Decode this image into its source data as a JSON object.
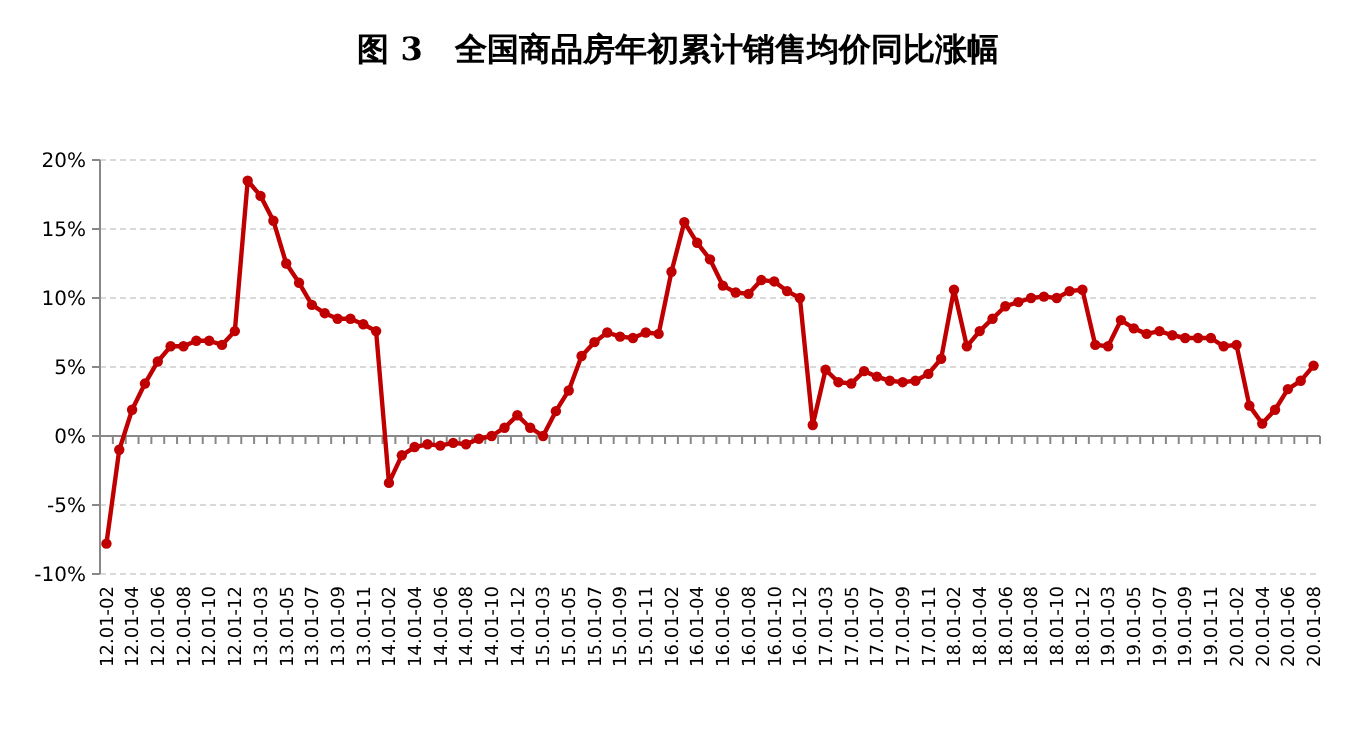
{
  "chart_data": {
    "type": "line",
    "title": "图 3　全国商品房年初累计销售均价同比涨幅",
    "categories": [
      "12.01-02",
      null,
      "12.01-04",
      null,
      "12.01-06",
      null,
      "12.01-08",
      null,
      "12.01-10",
      null,
      "12.01-12",
      null,
      "13.01-03",
      null,
      "13.01-05",
      null,
      "13.01-07",
      null,
      "13.01-09",
      null,
      "13.01-11",
      null,
      "14.01-02",
      null,
      "14.01-04",
      null,
      "14.01-06",
      null,
      "14.01-08",
      null,
      "14.01-10",
      null,
      "14.01-12",
      null,
      "15.01-03",
      null,
      "15.01-05",
      null,
      "15.01-07",
      null,
      "15.01-09",
      null,
      "15.01-11",
      null,
      "16.01-02",
      null,
      "16.01-04",
      null,
      "16.01-06",
      null,
      "16.01-08",
      null,
      "16.01-10",
      null,
      "16.01-12",
      null,
      "17.01-03",
      null,
      "17.01-05",
      null,
      "17.01-07",
      null,
      "17.01-09",
      null,
      "17.01-11",
      null,
      "18.01-02",
      null,
      "18.01-04",
      null,
      "18.01-06",
      null,
      "18.01-08",
      null,
      "18.01-10",
      null,
      "18.01-12",
      null,
      "19.01-03",
      null,
      "19.01-05",
      null,
      "19.01-07",
      null,
      "19.01-09",
      null,
      "19.01-11",
      null,
      "20.01-02",
      null,
      "20.01-04",
      null,
      "20.01-06",
      null,
      "20.01-08"
    ],
    "series": [
      {
        "color": "#c00000",
        "values": [
          -7.8,
          -1.0,
          1.9,
          3.8,
          5.4,
          6.5,
          6.5,
          6.9,
          6.9,
          6.6,
          7.6,
          18.5,
          17.4,
          15.6,
          12.5,
          11.1,
          9.5,
          8.9,
          8.5,
          8.5,
          8.1,
          7.6,
          -3.4,
          -1.4,
          -0.8,
          -0.6,
          -0.7,
          -0.5,
          -0.6,
          -0.2,
          0.0,
          0.6,
          1.5,
          0.6,
          0.0,
          1.8,
          3.3,
          5.8,
          6.8,
          7.5,
          7.2,
          7.1,
          7.5,
          7.4,
          11.9,
          15.5,
          14.0,
          12.8,
          10.9,
          10.4,
          10.3,
          11.3,
          11.2,
          10.5,
          10.0,
          0.8,
          4.8,
          3.9,
          3.8,
          4.7,
          4.3,
          4.0,
          3.9,
          4.0,
          4.5,
          5.6,
          10.6,
          6.5,
          7.6,
          8.5,
          9.4,
          9.7,
          10.0,
          10.1,
          10.0,
          10.5,
          10.6,
          6.6,
          6.5,
          8.4,
          7.8,
          7.4,
          7.6,
          7.3,
          7.1,
          7.1,
          7.1,
          6.5,
          6.6,
          2.2,
          0.9,
          1.9,
          3.4,
          4.0,
          5.1
        ]
      }
    ],
    "ylim": [
      -10,
      20
    ],
    "yticks": [
      {
        "value": -10,
        "label": "-10%"
      },
      {
        "value": -5,
        "label": "-5%"
      },
      {
        "value": 0,
        "label": "0%"
      },
      {
        "value": 5,
        "label": "5%"
      },
      {
        "value": 10,
        "label": "10%"
      },
      {
        "value": 15,
        "label": "15%"
      },
      {
        "value": 20,
        "label": "20%"
      }
    ],
    "grid": "y",
    "marker": "circle",
    "line_style": "solid"
  }
}
